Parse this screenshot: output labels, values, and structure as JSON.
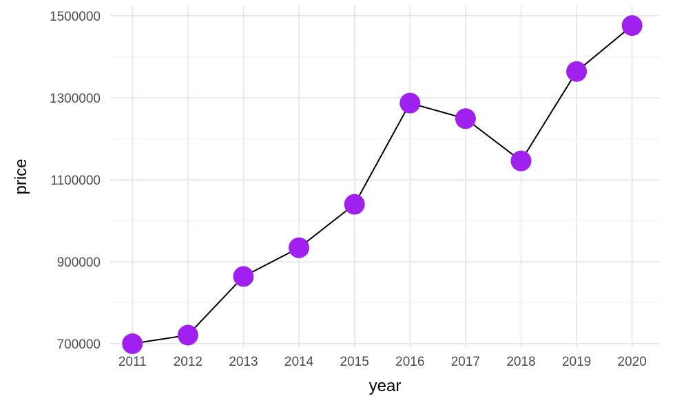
{
  "chart_data": {
    "type": "line",
    "title": "",
    "xlabel": "year",
    "ylabel": "price",
    "x": [
      2011,
      2012,
      2013,
      2014,
      2015,
      2016,
      2017,
      2018,
      2019,
      2020
    ],
    "values": [
      700000,
      721000,
      864000,
      934000,
      1040000,
      1287000,
      1249000,
      1146000,
      1364000,
      1476000
    ],
    "xticks": [
      2011,
      2012,
      2013,
      2014,
      2015,
      2016,
      2017,
      2018,
      2019,
      2020
    ],
    "yticks": [
      700000,
      900000,
      1100000,
      1300000,
      1500000
    ],
    "xlim": [
      2010.6,
      2020.5
    ],
    "ylim": [
      690000,
      1525000
    ],
    "grid": true,
    "legend": "none",
    "point_color": "#a020f0",
    "line_color": "#000000"
  }
}
